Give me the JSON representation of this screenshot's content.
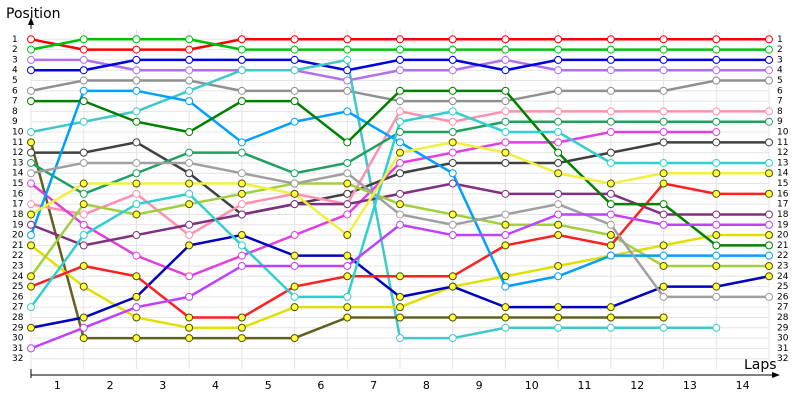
{
  "chart_data": {
    "type": "line",
    "y_axis_label": "Position",
    "x_axis_label": "Laps",
    "x": [
      0,
      1,
      2,
      3,
      4,
      5,
      6,
      7,
      8,
      9,
      10,
      11,
      12,
      13,
      14
    ],
    "xlim": [
      0,
      14
    ],
    "xticks": [
      {
        "value": 0.5,
        "label": "1"
      },
      {
        "value": 1.5,
        "label": "2"
      },
      {
        "value": 2.5,
        "label": "3"
      },
      {
        "value": 3.5,
        "label": "4"
      },
      {
        "value": 4.5,
        "label": "5"
      },
      {
        "value": 5.5,
        "label": "6"
      },
      {
        "value": 6.5,
        "label": "7"
      },
      {
        "value": 7.5,
        "label": "8"
      },
      {
        "value": 8.5,
        "label": "9"
      },
      {
        "value": 9.5,
        "label": "10"
      },
      {
        "value": 10.5,
        "label": "11"
      },
      {
        "value": 11.5,
        "label": "12"
      },
      {
        "value": 12.5,
        "label": "13"
      },
      {
        "value": 13.5,
        "label": "14"
      }
    ],
    "ylim": [
      33,
      0
    ],
    "yticks": [
      1,
      2,
      3,
      4,
      5,
      6,
      7,
      8,
      9,
      10,
      11,
      12,
      13,
      14,
      15,
      16,
      17,
      18,
      19,
      20,
      21,
      22,
      23,
      24,
      25,
      26,
      27,
      28,
      29,
      30,
      31,
      32
    ],
    "grid": true,
    "series": [
      {
        "color": "#ff0000",
        "marker_fill": "#ffffff",
        "values": [
          1,
          2,
          2,
          2,
          1,
          1,
          1,
          1,
          1,
          1,
          1,
          1,
          1,
          1,
          1
        ]
      },
      {
        "color": "#00c000",
        "marker_fill": "#ffffff",
        "values": [
          2,
          1,
          1,
          1,
          2,
          2,
          2,
          2,
          2,
          2,
          2,
          2,
          2,
          2,
          2
        ]
      },
      {
        "color": "#b070f0",
        "marker_fill": "#ffffff",
        "values": [
          3,
          3,
          4,
          4,
          4,
          4,
          5,
          4,
          4,
          3,
          4,
          4,
          4,
          4,
          4
        ]
      },
      {
        "color": "#0000e0",
        "marker_fill": "#ffffff",
        "values": [
          4,
          4,
          3,
          3,
          3,
          3,
          4,
          3,
          3,
          4,
          3,
          3,
          3,
          3,
          3
        ]
      },
      {
        "color": "#909090",
        "marker_fill": "#ffffff",
        "values": [
          6,
          5,
          5,
          5,
          6,
          6,
          6,
          7,
          7,
          7,
          6,
          6,
          6,
          5,
          5
        ]
      },
      {
        "color": "#40c8c8",
        "marker_fill": "#ffffff",
        "values": [
          10,
          9,
          8,
          6,
          4,
          4,
          3,
          30,
          30,
          29,
          29,
          29,
          29,
          29,
          null
        ]
      },
      {
        "color": "#606020",
        "marker_fill": "#ffff40",
        "values": [
          11,
          30,
          30,
          30,
          30,
          30,
          28,
          28,
          28,
          28,
          28,
          28,
          28,
          null,
          null
        ]
      },
      {
        "color": "#404040",
        "marker_fill": "#ffffff",
        "values": [
          12,
          12,
          11,
          14,
          18,
          17,
          16,
          14,
          13,
          13,
          13,
          12,
          11,
          11,
          11
        ]
      },
      {
        "color": "#e0e000",
        "marker_fill": "#ffff40",
        "values": [
          21,
          25,
          28,
          29,
          29,
          27,
          27,
          27,
          25,
          24,
          23,
          22,
          21,
          20,
          20
        ]
      },
      {
        "color": "#ff90b0",
        "marker_fill": "#ffffff",
        "values": [
          17,
          18,
          16,
          20,
          17,
          16,
          17,
          8,
          9,
          8,
          8,
          8,
          8,
          8,
          8
        ]
      },
      {
        "color": "#e040e0",
        "marker_fill": "#ffffff",
        "values": [
          15,
          19,
          22,
          24,
          22,
          20,
          18,
          13,
          12,
          11,
          11,
          10,
          10,
          10,
          null
        ]
      },
      {
        "color": "#0000c0",
        "marker_fill": "#ffff40",
        "values": [
          29,
          28,
          26,
          21,
          20,
          22,
          22,
          26,
          25,
          27,
          27,
          27,
          25,
          25,
          24
        ]
      },
      {
        "color": "#803080",
        "marker_fill": "#ffffff",
        "values": [
          19,
          21,
          20,
          19,
          18,
          17,
          17,
          16,
          15,
          16,
          16,
          16,
          18,
          18,
          18
        ]
      },
      {
        "color": "#a0d040",
        "marker_fill": "#ffff40",
        "values": [
          24,
          17,
          18,
          17,
          16,
          15,
          15,
          17,
          18,
          19,
          19,
          20,
          23,
          23,
          23
        ]
      },
      {
        "color": "#20a060",
        "marker_fill": "#ffffff",
        "values": [
          13,
          16,
          14,
          12,
          12,
          14,
          13,
          10,
          10,
          9,
          9,
          9,
          9,
          9,
          9
        ]
      },
      {
        "color": "#ff2020",
        "marker_fill": "#ffff40",
        "values": [
          25,
          23,
          24,
          28,
          28,
          25,
          24,
          24,
          24,
          21,
          20,
          21,
          15,
          16,
          16
        ]
      },
      {
        "color": "#00a0ff",
        "marker_fill": "#ffffff",
        "values": [
          20,
          6,
          6,
          7,
          11,
          9,
          8,
          11,
          14,
          25,
          24,
          22,
          22,
          22,
          22
        ]
      },
      {
        "color": "#008000",
        "marker_fill": "#ffffff",
        "values": [
          7,
          7,
          9,
          10,
          7,
          7,
          11,
          6,
          6,
          6,
          12,
          17,
          17,
          21,
          21
        ]
      },
      {
        "color": "#a0a0a0",
        "marker_fill": "#ffffff",
        "values": [
          14,
          13,
          13,
          13,
          14,
          15,
          14,
          18,
          19,
          18,
          17,
          19,
          26,
          26,
          26
        ]
      },
      {
        "color": "#30d0d0",
        "marker_fill": "#ffffff",
        "values": [
          27,
          20,
          17,
          16,
          21,
          26,
          26,
          9,
          8,
          10,
          10,
          13,
          13,
          13,
          13
        ]
      },
      {
        "color": "#f0f040",
        "marker_fill": "#ffff40",
        "values": [
          18,
          15,
          15,
          15,
          15,
          16,
          20,
          12,
          11,
          12,
          14,
          15,
          14,
          14,
          14
        ]
      },
      {
        "color": "#c040ff",
        "marker_fill": "#ffffff",
        "values": [
          31,
          29,
          27,
          26,
          23,
          23,
          23,
          19,
          20,
          20,
          18,
          18,
          19,
          19,
          19
        ]
      }
    ]
  }
}
